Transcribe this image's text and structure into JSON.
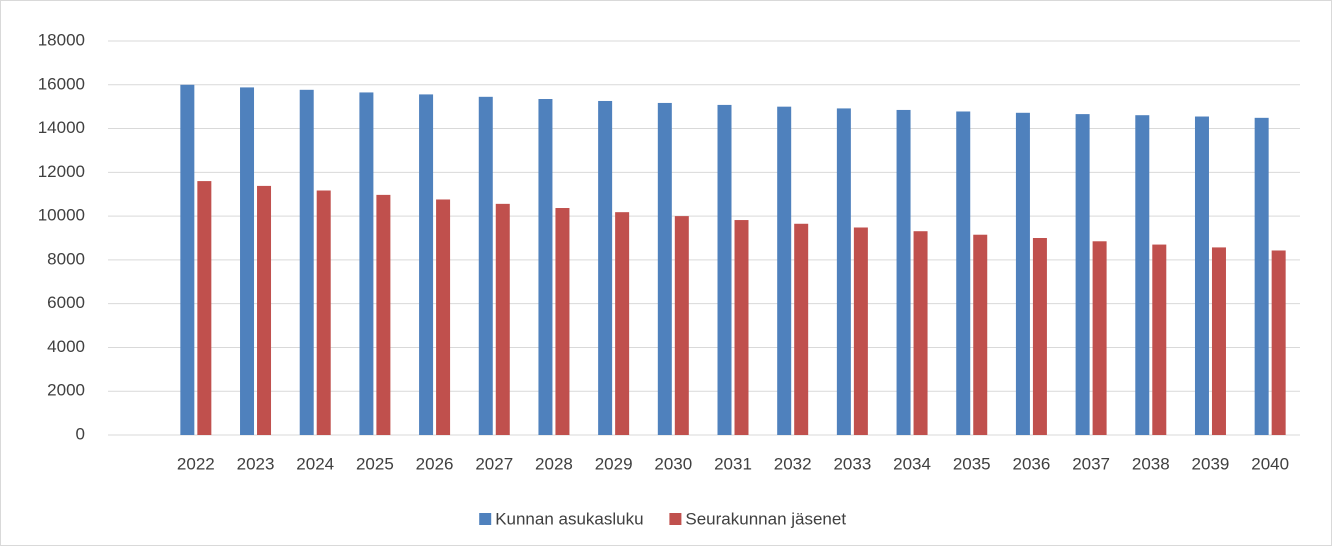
{
  "chart_data": {
    "type": "bar",
    "categories": [
      "2022",
      "2023",
      "2024",
      "2025",
      "2026",
      "2027",
      "2028",
      "2029",
      "2030",
      "2031",
      "2032",
      "2033",
      "2034",
      "2035",
      "2036",
      "2037",
      "2038",
      "2039",
      "2040"
    ],
    "series": [
      {
        "name": "Kunnan asukasluku",
        "color": "#4f81bd",
        "values": [
          16000,
          15880,
          15770,
          15650,
          15560,
          15450,
          15350,
          15260,
          15170,
          15080,
          15000,
          14920,
          14850,
          14780,
          14720,
          14660,
          14610,
          14550,
          14490
        ]
      },
      {
        "name": "Seurakunnan jäsenet",
        "color": "#c0504d",
        "values": [
          11600,
          11380,
          11170,
          10970,
          10760,
          10560,
          10370,
          10180,
          10000,
          9820,
          9650,
          9480,
          9310,
          9150,
          9000,
          8850,
          8700,
          8570,
          8430
        ]
      }
    ],
    "ylim": [
      0,
      18000
    ],
    "yticks": [
      0,
      2000,
      4000,
      6000,
      8000,
      10000,
      12000,
      14000,
      16000,
      18000
    ],
    "grid": true,
    "legend": "bottom"
  }
}
